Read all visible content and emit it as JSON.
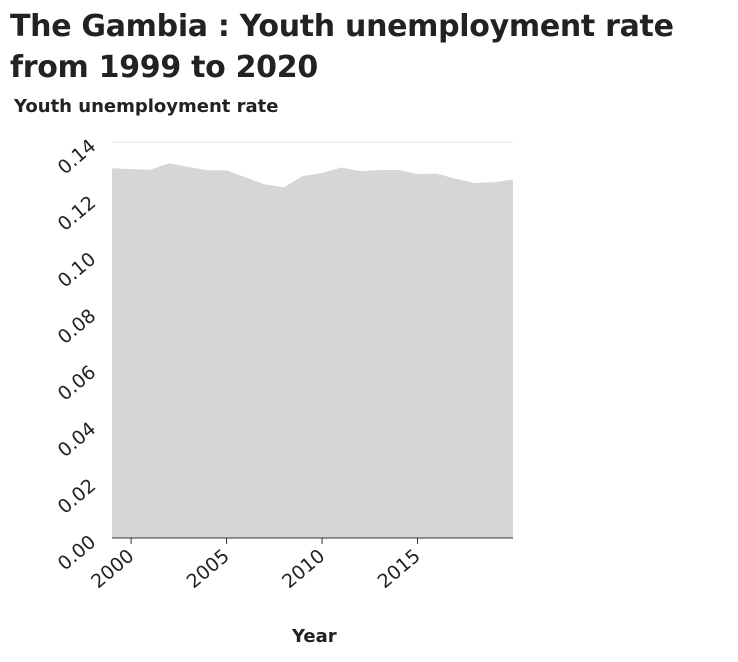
{
  "chart_data": {
    "type": "area",
    "title": "The Gambia : Youth unemployment rate from 1999 to 2020",
    "ylabel": "Youth unemployment rate",
    "xlabel": "Year",
    "xlim": [
      1999,
      2020
    ],
    "ylim": [
      0,
      0.14
    ],
    "x_ticks": [
      2000,
      2005,
      2010,
      2015
    ],
    "y_ticks": [
      "0.00",
      "0.02",
      "0.04",
      "0.06",
      "0.08",
      "0.10",
      "0.12",
      "0.14"
    ],
    "grid": true,
    "x": [
      1999,
      2000,
      2001,
      2002,
      2003,
      2004,
      2005,
      2006,
      2007,
      2008,
      2009,
      2010,
      2011,
      2012,
      2013,
      2014,
      2015,
      2016,
      2017,
      2018,
      2019,
      2020
    ],
    "values": [
      0.1307,
      0.1304,
      0.1302,
      0.1325,
      0.1312,
      0.13,
      0.13,
      0.1275,
      0.125,
      0.124,
      0.128,
      0.129,
      0.131,
      0.1297,
      0.1301,
      0.1301,
      0.1287,
      0.1288,
      0.127,
      0.1255,
      0.1258,
      0.1267
    ],
    "fill_color": "#d6d6d6",
    "grid_color": "#e6e6e6"
  }
}
